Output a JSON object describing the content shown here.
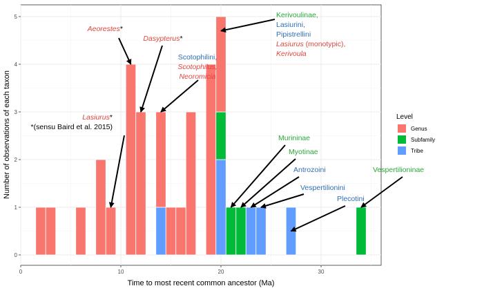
{
  "colors": {
    "genus": "#F8766D",
    "subfamily": "#00BA38",
    "tribe": "#619CFF",
    "red_text": "#E0463F",
    "blue_text": "#2F6FB5",
    "green_text": "#2BAA3A",
    "black_text": "#000000"
  },
  "chart_data": {
    "type": "bar",
    "stacked": true,
    "xlabel": "Time to most recent common ancestor (Ma)",
    "ylabel": "Number of observations of each taxon",
    "xlim": [
      0,
      36
    ],
    "ylim": [
      0,
      5
    ],
    "x_ticks": [
      "0",
      "10",
      "20",
      "30"
    ],
    "x_tick_values": [
      0,
      10,
      20,
      30
    ],
    "y_ticks": [
      "0",
      "1",
      "2",
      "3",
      "4",
      "5"
    ],
    "y_tick_values": [
      0,
      1,
      2,
      3,
      4,
      5
    ],
    "bin_width": 1,
    "legend": {
      "title": "Level",
      "position": "right",
      "entries": [
        {
          "key": "genus",
          "label": "Genus"
        },
        {
          "key": "subfamily",
          "label": "Subfamily"
        },
        {
          "key": "tribe",
          "label": "Tribe"
        }
      ]
    },
    "bars": [
      {
        "x": 2,
        "genus": 1,
        "subfamily": 0,
        "tribe": 0
      },
      {
        "x": 3,
        "genus": 1,
        "subfamily": 0,
        "tribe": 0
      },
      {
        "x": 6,
        "genus": 1,
        "subfamily": 0,
        "tribe": 0
      },
      {
        "x": 8,
        "genus": 2,
        "subfamily": 0,
        "tribe": 0
      },
      {
        "x": 9,
        "genus": 1,
        "subfamily": 0,
        "tribe": 0
      },
      {
        "x": 11,
        "genus": 4,
        "subfamily": 0,
        "tribe": 0
      },
      {
        "x": 12,
        "genus": 3,
        "subfamily": 0,
        "tribe": 0
      },
      {
        "x": 14,
        "genus": 2,
        "subfamily": 0,
        "tribe": 1
      },
      {
        "x": 15,
        "genus": 1,
        "subfamily": 0,
        "tribe": 0
      },
      {
        "x": 16,
        "genus": 1,
        "subfamily": 0,
        "tribe": 0
      },
      {
        "x": 17,
        "genus": 3,
        "subfamily": 0,
        "tribe": 0
      },
      {
        "x": 19,
        "genus": 4,
        "subfamily": 0,
        "tribe": 0
      },
      {
        "x": 20,
        "genus": 2,
        "subfamily": 1,
        "tribe": 2
      },
      {
        "x": 21,
        "genus": 0,
        "subfamily": 1,
        "tribe": 0
      },
      {
        "x": 22,
        "genus": 0,
        "subfamily": 1,
        "tribe": 0
      },
      {
        "x": 23,
        "genus": 0,
        "subfamily": 0,
        "tribe": 1
      },
      {
        "x": 24,
        "genus": 0,
        "subfamily": 0,
        "tribe": 1
      },
      {
        "x": 27,
        "genus": 0,
        "subfamily": 0,
        "tribe": 1
      },
      {
        "x": 34,
        "genus": 0,
        "subfamily": 1,
        "tribe": 0
      }
    ],
    "annotations": [
      {
        "id": "lasiurus-annot",
        "lines": [
          [
            {
              "text": "Lasiurus",
              "italic": true,
              "color": "red_text"
            },
            {
              "text": "*",
              "italic": false,
              "color": "black_text"
            }
          ],
          [
            {
              "text": "*(sensu Baird et al. 2015)",
              "italic": false,
              "color": "black_text"
            }
          ]
        ],
        "anchor": "end",
        "arrow_to": [
          9,
          1
        ]
      },
      {
        "id": "aeorestes-annot",
        "lines": [
          [
            {
              "text": "Aeorestes",
              "italic": true,
              "color": "red_text"
            },
            {
              "text": "*",
              "italic": false,
              "color": "black_text"
            }
          ]
        ],
        "anchor": "end",
        "arrow_to": [
          11,
          4
        ]
      },
      {
        "id": "dasypterus-annot",
        "lines": [
          [
            {
              "text": "Dasypterus",
              "italic": true,
              "color": "red_text"
            },
            {
              "text": "*",
              "italic": false,
              "color": "black_text"
            }
          ]
        ],
        "anchor": "middle",
        "arrow_to": [
          12,
          3
        ]
      },
      {
        "id": "scotophilini-annot",
        "lines": [
          [
            {
              "text": "Scotophilini,",
              "italic": false,
              "color": "blue_text"
            }
          ],
          [
            {
              "text": "Scotophilus,",
              "italic": true,
              "color": "red_text"
            }
          ],
          [
            {
              "text": "Neoromicia",
              "italic": true,
              "color": "red_text"
            }
          ]
        ],
        "anchor": "middle",
        "arrow_to": [
          14,
          3
        ]
      },
      {
        "id": "kerivoulinae-annot",
        "lines": [
          [
            {
              "text": "Kerivoulinae,",
              "italic": false,
              "color": "green_text"
            }
          ],
          [
            {
              "text": "Lasiurini,",
              "italic": false,
              "color": "blue_text"
            }
          ],
          [
            {
              "text": "Pipistrellini",
              "italic": false,
              "color": "blue_text"
            }
          ],
          [
            {
              "text": "Lasiurus",
              "italic": true,
              "color": "red_text"
            },
            {
              "text": " (monotypic),",
              "italic": false,
              "color": "red_text"
            }
          ],
          [
            {
              "text": "Kerivoula",
              "italic": true,
              "color": "red_text"
            }
          ]
        ],
        "anchor": "start",
        "arrow_to": [
          20,
          4.7
        ]
      },
      {
        "id": "murininae-annot",
        "lines": [
          [
            {
              "text": "Murininae",
              "italic": false,
              "color": "green_text"
            }
          ]
        ],
        "anchor": "start",
        "arrow_to": [
          21,
          1
        ]
      },
      {
        "id": "myotinae-annot",
        "lines": [
          [
            {
              "text": "Myotinae",
              "italic": false,
              "color": "green_text"
            }
          ]
        ],
        "anchor": "start",
        "arrow_to": [
          22,
          1
        ]
      },
      {
        "id": "antrozoini-annot",
        "lines": [
          [
            {
              "text": "Antrozoini",
              "italic": false,
              "color": "blue_text"
            }
          ]
        ],
        "anchor": "start",
        "arrow_to": [
          23,
          1
        ]
      },
      {
        "id": "vespertilionini-annot",
        "lines": [
          [
            {
              "text": "Vespertilionini",
              "italic": false,
              "color": "blue_text"
            }
          ]
        ],
        "anchor": "start",
        "arrow_to": [
          24,
          1
        ]
      },
      {
        "id": "plecotini-annot",
        "lines": [
          [
            {
              "text": "Plecotini",
              "italic": false,
              "color": "blue_text"
            }
          ]
        ],
        "anchor": "start",
        "arrow_to": [
          27,
          0.5
        ]
      },
      {
        "id": "vespertilioninae-annot",
        "lines": [
          [
            {
              "text": "Vespertilioninae",
              "italic": false,
              "color": "green_text"
            }
          ]
        ],
        "anchor": "start",
        "arrow_to": [
          34,
          1
        ]
      }
    ]
  }
}
